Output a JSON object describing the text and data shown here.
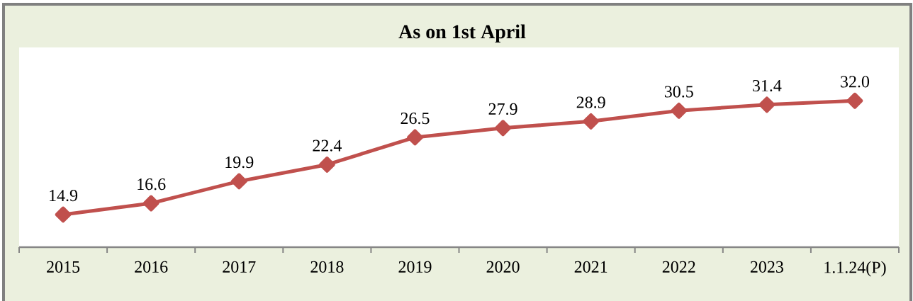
{
  "chart_data": {
    "type": "line",
    "title": "As on 1st April",
    "categories": [
      "2015",
      "2016",
      "2017",
      "2018",
      "2019",
      "2020",
      "2021",
      "2022",
      "2023",
      "1.1.24(P)"
    ],
    "values": [
      14.9,
      16.6,
      19.9,
      22.4,
      26.5,
      27.9,
      28.9,
      30.5,
      31.4,
      32.0
    ],
    "value_labels": [
      "14.9",
      "16.6",
      "19.9",
      "22.4",
      "26.5",
      "27.9",
      "28.9",
      "30.5",
      "31.4",
      "32.0"
    ],
    "color": "#c0504d",
    "marker": "diamond",
    "line_style": "solid",
    "ylim": [
      10,
      40
    ],
    "tick_labels": "x"
  }
}
